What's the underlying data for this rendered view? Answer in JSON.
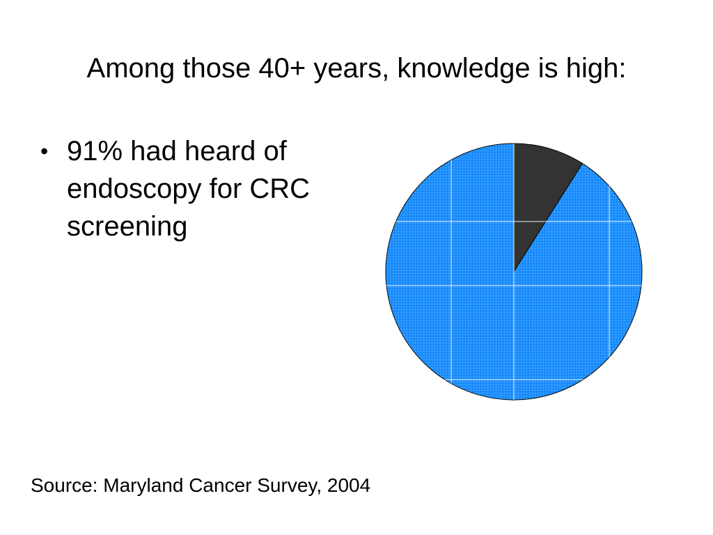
{
  "slide": {
    "title": "Among those 40+ years, knowledge is high:",
    "bullets": [
      "91% had heard of endoscopy for CRC screening"
    ],
    "bullet_glyph": "•",
    "source": "Source:  Maryland Cancer Survey, 2004"
  },
  "chart_data": {
    "type": "pie",
    "values": [
      9,
      91
    ],
    "colors": [
      "#333333",
      "#1e90ff"
    ],
    "start": "12 o'clock",
    "direction": "clockwise",
    "legend": "none",
    "grid": true
  }
}
